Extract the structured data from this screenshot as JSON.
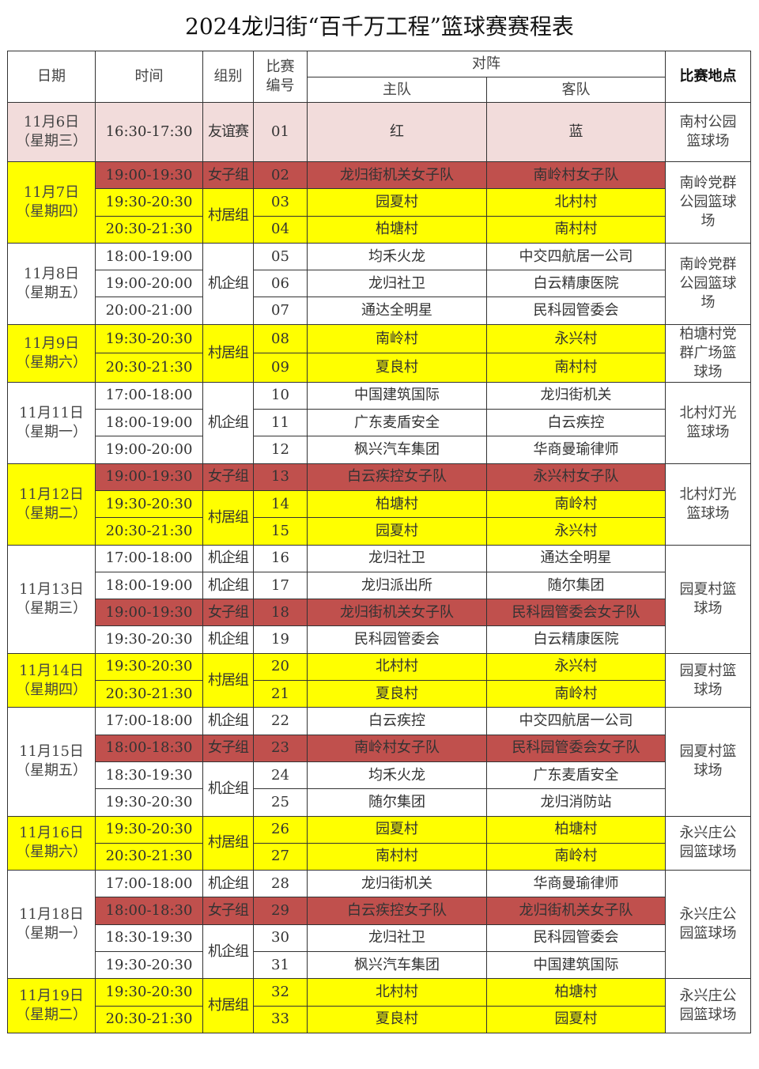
{
  "title": "2024龙归街“百千万工程”篮球赛赛程表",
  "colors": {
    "friendly": "#f2dcdb",
    "village": "#ffff00",
    "female": "#c0504d",
    "corporate": "#ffffff"
  },
  "headers": {
    "date": "日期",
    "time": "时间",
    "group": "组别",
    "match_no": "比赛编号",
    "matchup": "对阵",
    "home": "主队",
    "away": "客队",
    "venue": "比赛地点"
  },
  "days": [
    {
      "date": "11月6日",
      "weekday": "（星期三）",
      "color": "pink",
      "venue": "南村公园篮球场",
      "groups": [
        {
          "label": "友谊赛",
          "rows": 1,
          "color": "pink"
        }
      ],
      "matches": [
        {
          "time": "16:30-17:30",
          "no": "01",
          "home": "红",
          "away": "蓝",
          "color": "pink"
        }
      ]
    },
    {
      "date": "11月7日",
      "weekday": "（星期四）",
      "color": "yellow",
      "venue": "南岭党群公园篮球场",
      "groups": [
        {
          "label": "女子组",
          "rows": 1,
          "color": "red"
        },
        {
          "label": "村居组",
          "rows": 2,
          "color": "yellow"
        }
      ],
      "matches": [
        {
          "time": "19:00-19:30",
          "no": "02",
          "home": "龙归街机关女子队",
          "away": "南岭村女子队",
          "color": "red"
        },
        {
          "time": "19:30-20:30",
          "no": "03",
          "home": "园夏村",
          "away": "北村村",
          "color": "yellow"
        },
        {
          "time": "20:30-21:30",
          "no": "04",
          "home": "柏塘村",
          "away": "南村村",
          "color": "yellow"
        }
      ]
    },
    {
      "date": "11月8日",
      "weekday": "（星期五）",
      "color": "white",
      "venue": "南岭党群公园篮球场",
      "groups": [
        {
          "label": "机企组",
          "rows": 3,
          "color": "white"
        }
      ],
      "matches": [
        {
          "time": "18:00-19:00",
          "no": "05",
          "home": "均禾火龙",
          "away": "中交四航居一公司",
          "color": "white"
        },
        {
          "time": "19:00-20:00",
          "no": "06",
          "home": "龙归社卫",
          "away": "白云精康医院",
          "color": "white"
        },
        {
          "time": "20:00-21:00",
          "no": "07",
          "home": "通达全明星",
          "away": "民科园管委会",
          "color": "white"
        }
      ]
    },
    {
      "date": "11月9日",
      "weekday": "（星期六）",
      "color": "yellow",
      "venue": "柏塘村党群广场篮球场",
      "groups": [
        {
          "label": "村居组",
          "rows": 2,
          "color": "yellow"
        }
      ],
      "matches": [
        {
          "time": "19:30-20:30",
          "no": "08",
          "home": "南岭村",
          "away": "永兴村",
          "color": "yellow"
        },
        {
          "time": "20:30-21:30",
          "no": "09",
          "home": "夏良村",
          "away": "南村村",
          "color": "yellow"
        }
      ]
    },
    {
      "date": "11月11日",
      "weekday": "（星期一）",
      "color": "white",
      "venue": "北村灯光篮球场",
      "groups": [
        {
          "label": "机企组",
          "rows": 3,
          "color": "white"
        }
      ],
      "matches": [
        {
          "time": "17:00-18:00",
          "no": "10",
          "home": "中国建筑国际",
          "away": "龙归街机关",
          "color": "white"
        },
        {
          "time": "18:00-19:00",
          "no": "11",
          "home": "广东麦盾安全",
          "away": "白云疾控",
          "color": "white"
        },
        {
          "time": "19:00-20:00",
          "no": "12",
          "home": "枫兴汽车集团",
          "away": "华商曼瑜律师",
          "color": "white"
        }
      ]
    },
    {
      "date": "11月12日",
      "weekday": "（星期二）",
      "color": "yellow",
      "venue": "北村灯光篮球场",
      "groups": [
        {
          "label": "女子组",
          "rows": 1,
          "color": "red"
        },
        {
          "label": "村居组",
          "rows": 2,
          "color": "yellow"
        }
      ],
      "matches": [
        {
          "time": "19:00-19:30",
          "no": "13",
          "home": "白云疾控女子队",
          "away": "永兴村女子队",
          "color": "red"
        },
        {
          "time": "19:30-20:30",
          "no": "14",
          "home": "柏塘村",
          "away": "南岭村",
          "color": "yellow"
        },
        {
          "time": "20:30-21:30",
          "no": "15",
          "home": "园夏村",
          "away": "永兴村",
          "color": "yellow"
        }
      ]
    },
    {
      "date": "11月13日",
      "weekday": "（星期三）",
      "color": "white",
      "venue": "园夏村篮球场",
      "groups": [
        {
          "label": "机企组",
          "rows": 1,
          "color": "white"
        },
        {
          "label": "机企组",
          "rows": 1,
          "color": "white"
        },
        {
          "label": "女子组",
          "rows": 1,
          "color": "red"
        },
        {
          "label": "机企组",
          "rows": 1,
          "color": "white"
        }
      ],
      "matches": [
        {
          "time": "17:00-18:00",
          "no": "16",
          "home": "龙归社卫",
          "away": "通达全明星",
          "color": "white"
        },
        {
          "time": "18:00-19:00",
          "no": "17",
          "home": "龙归派出所",
          "away": "随尔集团",
          "color": "white"
        },
        {
          "time": "19:00-19:30",
          "no": "18",
          "home": "龙归街机关女子队",
          "away": "民科园管委会女子队",
          "color": "red"
        },
        {
          "time": "19:30-20:30",
          "no": "19",
          "home": "民科园管委会",
          "away": "白云精康医院",
          "color": "white"
        }
      ]
    },
    {
      "date": "11月14日",
      "weekday": "（星期四）",
      "color": "yellow",
      "venue": "园夏村篮球场",
      "groups": [
        {
          "label": "村居组",
          "rows": 2,
          "color": "yellow"
        }
      ],
      "matches": [
        {
          "time": "19:30-20:30",
          "no": "20",
          "home": "北村村",
          "away": "永兴村",
          "color": "yellow"
        },
        {
          "time": "20:30-21:30",
          "no": "21",
          "home": "夏良村",
          "away": "南岭村",
          "color": "yellow"
        }
      ]
    },
    {
      "date": "11月15日",
      "weekday": "（星期五）",
      "color": "white",
      "venue": "园夏村篮球场",
      "groups": [
        {
          "label": "机企组",
          "rows": 1,
          "color": "white"
        },
        {
          "label": "女子组",
          "rows": 1,
          "color": "red"
        },
        {
          "label": "机企组",
          "rows": 2,
          "color": "white"
        }
      ],
      "matches": [
        {
          "time": "17:00-18:00",
          "no": "22",
          "home": "白云疾控",
          "away": "中交四航居一公司",
          "color": "white"
        },
        {
          "time": "18:00-18:30",
          "no": "23",
          "home": "南岭村女子队",
          "away": "民科园管委会女子队",
          "color": "red"
        },
        {
          "time": "18:30-19:30",
          "no": "24",
          "home": "均禾火龙",
          "away": "广东麦盾安全",
          "color": "white"
        },
        {
          "time": "19:30-20:30",
          "no": "25",
          "home": "随尔集团",
          "away": "龙归消防站",
          "color": "white"
        }
      ]
    },
    {
      "date": "11月16日",
      "weekday": "（星期六）",
      "color": "yellow",
      "venue": "永兴庄公园篮球场",
      "groups": [
        {
          "label": "村居组",
          "rows": 2,
          "color": "yellow"
        }
      ],
      "matches": [
        {
          "time": "19:30-20:30",
          "no": "26",
          "home": "园夏村",
          "away": "柏塘村",
          "color": "yellow"
        },
        {
          "time": "20:30-21:30",
          "no": "27",
          "home": "南村村",
          "away": "南岭村",
          "color": "yellow"
        }
      ]
    },
    {
      "date": "11月18日",
      "weekday": "（星期一）",
      "color": "white",
      "venue": "永兴庄公园篮球场",
      "groups": [
        {
          "label": "机企组",
          "rows": 1,
          "color": "white"
        },
        {
          "label": "女子组",
          "rows": 1,
          "color": "red"
        },
        {
          "label": "机企组",
          "rows": 2,
          "color": "white"
        }
      ],
      "matches": [
        {
          "time": "17:00-18:00",
          "no": "28",
          "home": "龙归街机关",
          "away": "华商曼瑜律师",
          "color": "white"
        },
        {
          "time": "18:00-18:30",
          "no": "29",
          "home": "白云疾控女子队",
          "away": "龙归街机关女子队",
          "color": "red"
        },
        {
          "time": "18:30-19:30",
          "no": "30",
          "home": "龙归社卫",
          "away": "民科园管委会",
          "color": "white"
        },
        {
          "time": "19:30-20:30",
          "no": "31",
          "home": "枫兴汽车集团",
          "away": "中国建筑国际",
          "color": "white"
        }
      ]
    },
    {
      "date": "11月19日",
      "weekday": "（星期二）",
      "color": "yellow",
      "venue": "永兴庄公园篮球场",
      "groups": [
        {
          "label": "村居组",
          "rows": 2,
          "color": "yellow"
        }
      ],
      "matches": [
        {
          "time": "19:30-20:30",
          "no": "32",
          "home": "北村村",
          "away": "柏塘村",
          "color": "yellow"
        },
        {
          "time": "20:30-21:30",
          "no": "33",
          "home": "夏良村",
          "away": "园夏村",
          "color": "yellow"
        }
      ]
    }
  ]
}
